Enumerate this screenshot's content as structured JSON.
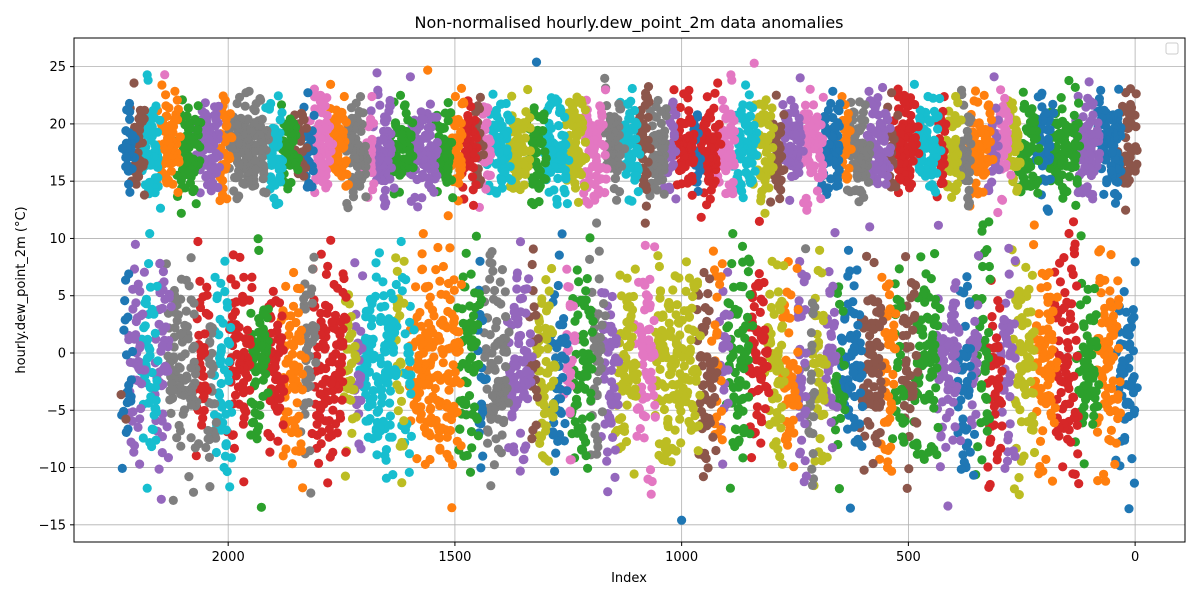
{
  "chart_data": {
    "type": "scatter",
    "title": "Non-normalised hourly.dew_point_2m data anomalies",
    "xlabel": "Index",
    "ylabel": "hourly.dew_point_2m (°C)",
    "x_inverted": true,
    "xlim": [
      2340,
      -110
    ],
    "ylim": [
      -16.5,
      27.5
    ],
    "x_ticks": [
      2000,
      1500,
      1000,
      500,
      0
    ],
    "y_ticks": [
      -15,
      -10,
      -5,
      0,
      5,
      10,
      15,
      20,
      25
    ],
    "grid": true,
    "legend": {
      "placement": "top-right",
      "entries": []
    },
    "marker": "circle",
    "palette": [
      "#1f77b4",
      "#ff7f0e",
      "#2ca02c",
      "#d62728",
      "#9467bd",
      "#8c564b",
      "#e377c2",
      "#7f7f7f",
      "#bcbd22",
      "#17becf"
    ],
    "x_range": [
      0,
      2230
    ],
    "clusters": [
      {
        "name": "upper band",
        "y_mean": 18,
        "y_spread": 2.2,
        "y_min": 11,
        "y_max": 25.5
      },
      {
        "name": "lower band",
        "y_mean": -1,
        "y_spread": 4.5,
        "y_min": -14.6,
        "y_max": 12
      }
    ],
    "series": [
      {
        "color_index": 0,
        "points": [
          [
            2230,
            2
          ],
          [
            1320,
            25.4
          ],
          [
            1000,
            -14.6
          ]
        ]
      },
      {
        "color_index": 6,
        "points": [
          [
            2140,
            24.3
          ],
          [
            840,
            25.3
          ]
        ]
      },
      {
        "color_index": 1,
        "points": [
          [
            1560,
            24.7
          ]
        ]
      }
    ]
  }
}
